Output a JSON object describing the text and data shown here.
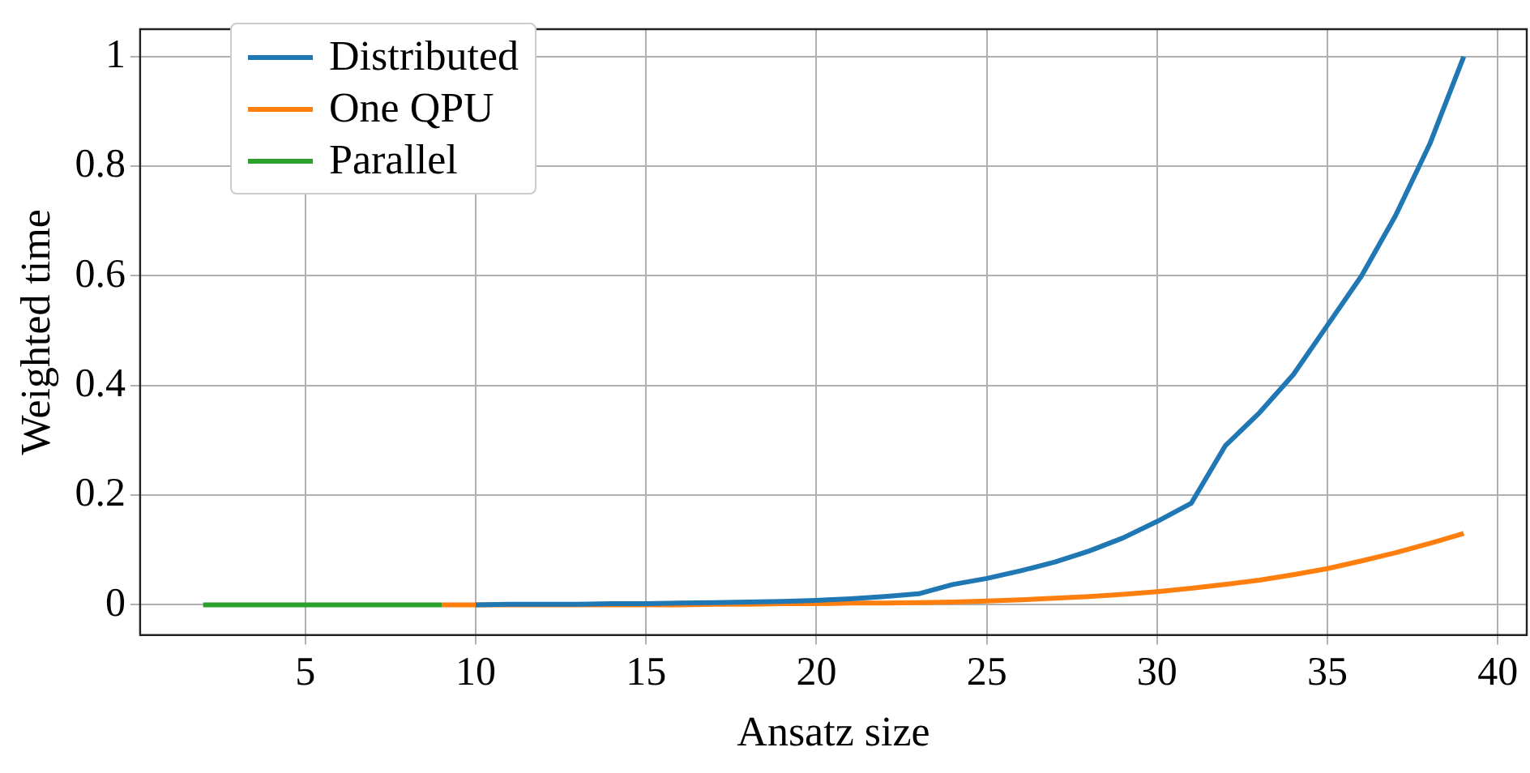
{
  "chart_data": {
    "type": "line",
    "xlabel": "Ansatz size",
    "ylabel": "Weighted time",
    "xlim": [
      0.15,
      40.85
    ],
    "xticks": [
      5,
      10,
      15,
      20,
      25,
      30,
      35,
      40
    ],
    "ylim": [
      -0.055,
      1.05
    ],
    "yticks": [
      0,
      0.2,
      0.4,
      0.6,
      0.8,
      1
    ],
    "grid": true,
    "legend": "top left",
    "marker": "none",
    "line_style": "solid",
    "series": [
      {
        "name": "Distributed",
        "color": "#1f77b4",
        "x": [
          10,
          11,
          12,
          13,
          14,
          15,
          16,
          17,
          18,
          19,
          20,
          21,
          22,
          23,
          24,
          25,
          26,
          27,
          28,
          29,
          30,
          31,
          32,
          33,
          34,
          35,
          36,
          37,
          38,
          39
        ],
        "values": [
          0,
          0.001,
          0.001,
          0.001,
          0.002,
          0.002,
          0.003,
          0.004,
          0.005,
          0.006,
          0.008,
          0.011,
          0.015,
          0.02,
          0.037,
          0.048,
          0.062,
          0.078,
          0.098,
          0.122,
          0.152,
          0.185,
          0.29,
          0.35,
          0.42,
          0.51,
          0.6,
          0.71,
          0.84,
          1.0
        ]
      },
      {
        "name": "One QPU",
        "color": "#ff7f0e",
        "x": [
          9,
          10,
          11,
          12,
          13,
          14,
          15,
          16,
          17,
          18,
          19,
          20,
          21,
          22,
          23,
          24,
          25,
          26,
          27,
          28,
          29,
          30,
          31,
          32,
          33,
          34,
          35,
          36,
          37,
          38,
          39
        ],
        "values": [
          0,
          0,
          0,
          0,
          0,
          0,
          0,
          0,
          0.001,
          0.001,
          0.002,
          0.002,
          0.003,
          0.003,
          0.004,
          0.005,
          0.007,
          0.009,
          0.012,
          0.015,
          0.019,
          0.024,
          0.03,
          0.037,
          0.045,
          0.055,
          0.066,
          0.08,
          0.095,
          0.112,
          0.13
        ]
      },
      {
        "name": "Parallel",
        "color": "#2ca02c",
        "x": [
          2,
          3,
          4,
          5,
          6,
          7,
          8,
          9
        ],
        "values": [
          0,
          0,
          0,
          0,
          0,
          0,
          0,
          0
        ]
      }
    ]
  }
}
